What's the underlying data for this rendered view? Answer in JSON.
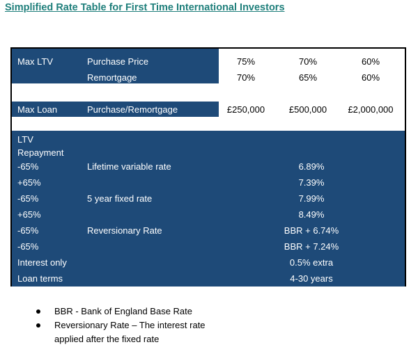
{
  "title": "Simplified Rate Table for First Time International Investors",
  "colors": {
    "header_fill": "#1e4a78",
    "title": "#1f7f7b"
  },
  "ltv_section": {
    "label": "Max LTV",
    "rows": [
      {
        "label": "Purchase Price",
        "values": [
          "75%",
          "70%",
          "60%"
        ]
      },
      {
        "label": "Remortgage",
        "values": [
          "70%",
          "65%",
          "60%"
        ]
      }
    ]
  },
  "loan_section": {
    "label": "Max Loan",
    "sublabel": "Purchase/Remortgage",
    "values": [
      "£250,000",
      "£500,000",
      "£2,000,000"
    ]
  },
  "rates_section": {
    "header_lines": [
      "LTV",
      "Repayment"
    ],
    "rows": [
      {
        "ltv": "-65%",
        "product": "Lifetime variable rate",
        "rate": "6.89%"
      },
      {
        "ltv": "+65%",
        "product": "",
        "rate": "7.39%"
      },
      {
        "ltv": "-65%",
        "product": "5 year fixed rate",
        "rate": "7.99%"
      },
      {
        "ltv": "+65%",
        "product": "",
        "rate": "8.49%"
      },
      {
        "ltv": "-65%",
        "product": "Reversionary Rate",
        "rate": "BBR + 6.74%"
      },
      {
        "ltv": "-65%",
        "product": "",
        "rate": "BBR + 7.24%"
      },
      {
        "ltv": "Interest only",
        "product": "",
        "rate": "0.5% extra"
      },
      {
        "ltv": "Loan terms",
        "product": "",
        "rate": "4-30 years"
      }
    ]
  },
  "notes": [
    "BBR - Bank of England Base Rate",
    "Reversionary Rate – The interest rate applied after the fixed rate"
  ]
}
